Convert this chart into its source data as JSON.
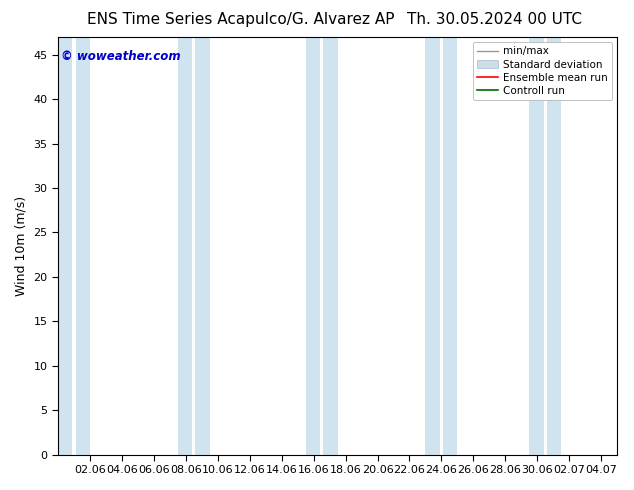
{
  "title_left": "ENS Time Series Acapulco/G. Alvarez AP",
  "title_right": "Th. 30.05.2024 00 UTC",
  "ylabel": "Wind 10m (m/s)",
  "watermark": "© woweather.com",
  "ylim": [
    0,
    47
  ],
  "yticks": [
    0,
    5,
    10,
    15,
    20,
    25,
    30,
    35,
    40,
    45
  ],
  "xtick_labels": [
    "02.06",
    "04.06",
    "06.06",
    "08.06",
    "10.06",
    "12.06",
    "14.06",
    "16.06",
    "18.06",
    "20.06",
    "22.06",
    "24.06",
    "26.06",
    "28.06",
    "30.06",
    "02.07",
    "04.07"
  ],
  "legend_entries": [
    "min/max",
    "Standard deviation",
    "Ensemble mean run",
    "Controll run"
  ],
  "legend_line_colors": [
    "#aaaaaa",
    "#ccddee",
    "#ff0000",
    "#008800"
  ],
  "legend_patch_colors": [
    "#dddddd",
    "#ddeeff",
    "#ff0000",
    "#008800"
  ],
  "background_color": "#ffffff",
  "plot_bg_color": "#ffffff",
  "title_fontsize": 11,
  "axis_fontsize": 9,
  "tick_fontsize": 8,
  "watermark_color": "#0000cc",
  "band_color": "#d0e4f0",
  "band_pairs": [
    [
      -0.75,
      -0.25
    ],
    [
      3.0,
      3.75
    ],
    [
      7.0,
      7.75
    ],
    [
      10.75,
      11.25
    ],
    [
      14.0,
      14.75
    ]
  ],
  "xlim": [
    -1.0,
    16.5
  ]
}
